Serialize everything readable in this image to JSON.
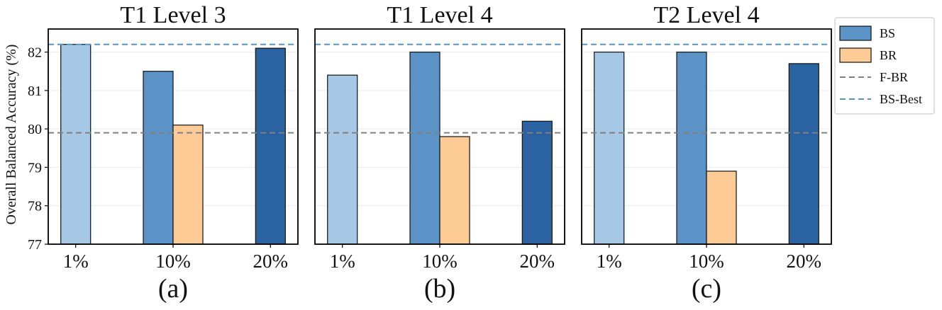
{
  "figure": {
    "ylabel": "Overall Balanced Accuracy (%)",
    "colors": {
      "bs_shades": [
        "#a6c8e4",
        "#5c93c6",
        "#2b62a2"
      ],
      "br": "#fdcb96",
      "fbr_line": "#808080",
      "bs_best_line": "#5a93b8"
    }
  },
  "chart_data": [
    {
      "type": "bar",
      "title": "T1 Level 3",
      "caption": "(a)",
      "categories": [
        "1%",
        "10%",
        "20%"
      ],
      "series": [
        {
          "name": "BS",
          "values": [
            82.2,
            81.5,
            82.1
          ]
        },
        {
          "name": "BR",
          "values": [
            null,
            80.1,
            null
          ]
        }
      ],
      "reference_lines": {
        "F-BR": 79.9,
        "BS-Best": 82.2
      },
      "ylim": [
        77,
        82.6
      ],
      "yticks": [
        "77",
        "78",
        "79",
        "80",
        "81",
        "82"
      ],
      "show_ytick_labels": true
    },
    {
      "type": "bar",
      "title": "T1 Level 4",
      "caption": "(b)",
      "categories": [
        "1%",
        "10%",
        "20%"
      ],
      "series": [
        {
          "name": "BS",
          "values": [
            81.4,
            82.0,
            80.2
          ]
        },
        {
          "name": "BR",
          "values": [
            null,
            79.8,
            null
          ]
        }
      ],
      "reference_lines": {
        "F-BR": 79.9,
        "BS-Best": 82.2
      },
      "ylim": [
        77,
        82.6
      ],
      "yticks": [
        "77",
        "78",
        "79",
        "80",
        "81",
        "82"
      ],
      "show_ytick_labels": false
    },
    {
      "type": "bar",
      "title": "T2 Level 4",
      "caption": "(c)",
      "categories": [
        "1%",
        "10%",
        "20%"
      ],
      "series": [
        {
          "name": "BS",
          "values": [
            82.0,
            82.0,
            81.7
          ]
        },
        {
          "name": "BR",
          "values": [
            null,
            78.9,
            null
          ]
        }
      ],
      "reference_lines": {
        "F-BR": 79.9,
        "BS-Best": 82.2
      },
      "ylim": [
        77,
        82.6
      ],
      "yticks": [
        "77",
        "78",
        "79",
        "80",
        "81",
        "82"
      ],
      "show_ytick_labels": false
    }
  ],
  "legend": {
    "position": "right",
    "entries": [
      {
        "label": "BS",
        "kind": "patch",
        "color": "#5c93c6"
      },
      {
        "label": "BR",
        "kind": "patch",
        "color": "#fdcb96"
      },
      {
        "label": "F-BR",
        "kind": "dashed-line",
        "color": "#808080"
      },
      {
        "label": "BS-Best",
        "kind": "dashed-line",
        "color": "#5a93b8"
      }
    ]
  }
}
